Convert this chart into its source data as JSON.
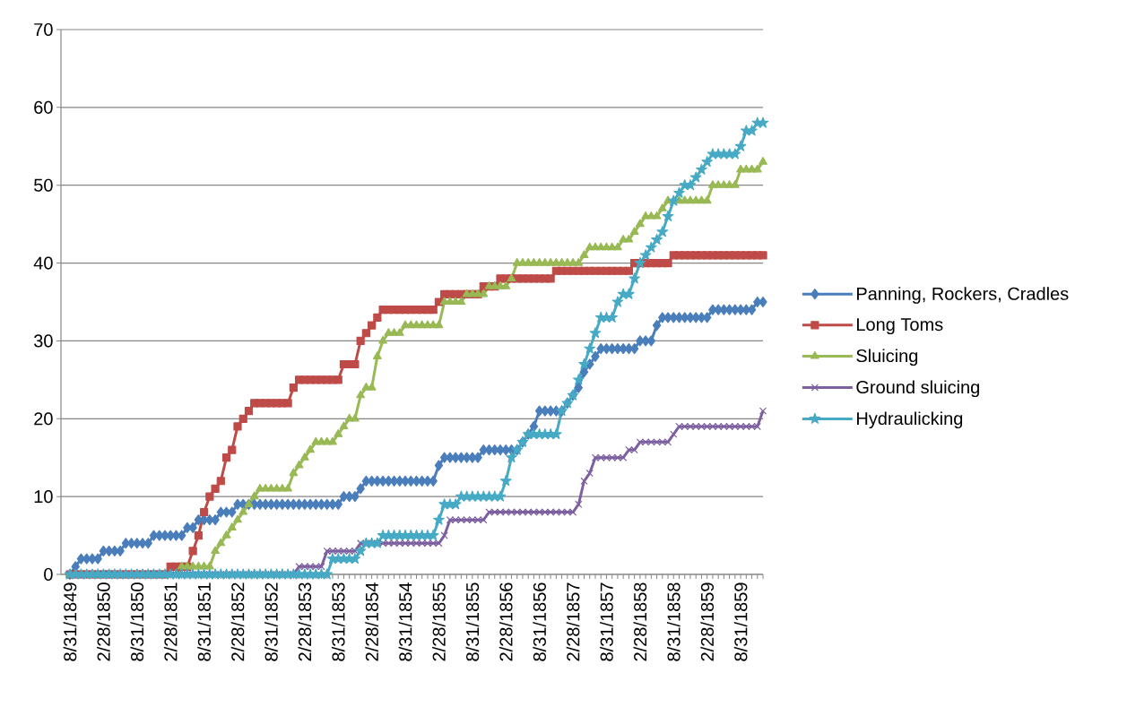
{
  "chart_data": {
    "type": "line",
    "categories": [
      "8/31/1849",
      null,
      null,
      null,
      null,
      null,
      "2/28/1850",
      null,
      null,
      null,
      null,
      null,
      "8/31/1850",
      null,
      null,
      null,
      null,
      null,
      "2/28/1851",
      null,
      null,
      null,
      null,
      null,
      "8/31/1851",
      null,
      null,
      null,
      null,
      null,
      "2/28/1852",
      null,
      null,
      null,
      null,
      null,
      "8/31/1852",
      null,
      null,
      null,
      null,
      null,
      "2/28/1853",
      null,
      null,
      null,
      null,
      null,
      "8/31/1853",
      null,
      null,
      null,
      null,
      null,
      "2/28/1854",
      null,
      null,
      null,
      null,
      null,
      "8/31/1854",
      null,
      null,
      null,
      null,
      null,
      "2/28/1855",
      null,
      null,
      null,
      null,
      null,
      "8/31/1855",
      null,
      null,
      null,
      null,
      null,
      "2/28/1856",
      null,
      null,
      null,
      null,
      null,
      "8/31/1856",
      null,
      null,
      null,
      null,
      null,
      "2/28/1857",
      null,
      null,
      null,
      null,
      null,
      "8/31/1857",
      null,
      null,
      null,
      null,
      null,
      "2/28/1858",
      null,
      null,
      null,
      null,
      null,
      "8/31/1858",
      null,
      null,
      null,
      null,
      null,
      "2/28/1859",
      null,
      null,
      null,
      null,
      null,
      "8/31/1859",
      null,
      null,
      null,
      null
    ],
    "series": [
      {
        "name": "Panning, Rockers, Cradles",
        "color": "#4a7ebb",
        "marker": "diamond",
        "values": [
          0,
          1,
          2,
          2,
          2,
          2,
          3,
          3,
          3,
          3,
          4,
          4,
          4,
          4,
          4,
          5,
          5,
          5,
          5,
          5,
          5,
          6,
          6,
          7,
          7,
          7,
          7,
          8,
          8,
          8,
          9,
          9,
          9,
          9,
          9,
          9,
          9,
          9,
          9,
          9,
          9,
          9,
          9,
          9,
          9,
          9,
          9,
          9,
          9,
          10,
          10,
          10,
          11,
          12,
          12,
          12,
          12,
          12,
          12,
          12,
          12,
          12,
          12,
          12,
          12,
          12,
          14,
          15,
          15,
          15,
          15,
          15,
          15,
          15,
          16,
          16,
          16,
          16,
          16,
          16,
          16,
          17,
          18,
          19,
          21,
          21,
          21,
          21,
          21,
          22,
          23,
          24,
          26,
          27,
          28,
          29,
          29,
          29,
          29,
          29,
          29,
          29,
          30,
          30,
          30,
          32,
          33,
          33,
          33,
          33,
          33,
          33,
          33,
          33,
          33,
          34,
          34,
          34,
          34,
          34,
          34,
          34,
          34,
          35,
          35
        ]
      },
      {
        "name": "Long Toms",
        "color": "#be4b48",
        "marker": "square",
        "values": [
          0,
          0,
          0,
          0,
          0,
          0,
          0,
          0,
          0,
          0,
          0,
          0,
          0,
          0,
          0,
          0,
          0,
          0,
          1,
          1,
          1,
          1,
          3,
          5,
          8,
          10,
          11,
          12,
          15,
          16,
          19,
          20,
          21,
          22,
          22,
          22,
          22,
          22,
          22,
          22,
          24,
          25,
          25,
          25,
          25,
          25,
          25,
          25,
          25,
          27,
          27,
          27,
          30,
          31,
          32,
          33,
          34,
          34,
          34,
          34,
          34,
          34,
          34,
          34,
          34,
          34,
          35,
          36,
          36,
          36,
          36,
          36,
          36,
          36,
          37,
          37,
          37,
          38,
          38,
          38,
          38,
          38,
          38,
          38,
          38,
          38,
          38,
          39,
          39,
          39,
          39,
          39,
          39,
          39,
          39,
          39,
          39,
          39,
          39,
          39,
          39,
          40,
          40,
          40,
          40,
          40,
          40,
          40,
          41,
          41,
          41,
          41,
          41,
          41,
          41,
          41,
          41,
          41,
          41,
          41,
          41,
          41,
          41,
          41,
          41
        ]
      },
      {
        "name": "Sluicing",
        "color": "#98b954",
        "marker": "triangle",
        "values": [
          0,
          0,
          0,
          0,
          0,
          0,
          0,
          0,
          0,
          0,
          0,
          0,
          0,
          0,
          0,
          0,
          0,
          0,
          0,
          0,
          1,
          1,
          1,
          1,
          1,
          1,
          3,
          4,
          5,
          6,
          7,
          8,
          9,
          10,
          11,
          11,
          11,
          11,
          11,
          11,
          13,
          14,
          15,
          16,
          17,
          17,
          17,
          17,
          18,
          19,
          20,
          20,
          23,
          24,
          24,
          28,
          30,
          31,
          31,
          31,
          32,
          32,
          32,
          32,
          32,
          32,
          32,
          35,
          35,
          35,
          35,
          36,
          36,
          36,
          36,
          37,
          37,
          37,
          37,
          38,
          40,
          40,
          40,
          40,
          40,
          40,
          40,
          40,
          40,
          40,
          40,
          40,
          41,
          42,
          42,
          42,
          42,
          42,
          42,
          43,
          43,
          44,
          45,
          46,
          46,
          46,
          47,
          48,
          48,
          48,
          48,
          48,
          48,
          48,
          48,
          50,
          50,
          50,
          50,
          50,
          52,
          52,
          52,
          52,
          53
        ]
      },
      {
        "name": "Ground sluicing",
        "color": "#7d60a0",
        "marker": "cross",
        "values": [
          0,
          0,
          0,
          0,
          0,
          0,
          0,
          0,
          0,
          0,
          0,
          0,
          0,
          0,
          0,
          0,
          0,
          0,
          0,
          0,
          0,
          0,
          0,
          0,
          0,
          0,
          0,
          0,
          0,
          0,
          0,
          0,
          0,
          0,
          0,
          0,
          0,
          0,
          0,
          0,
          0,
          1,
          1,
          1,
          1,
          1,
          3,
          3,
          3,
          3,
          3,
          3,
          4,
          4,
          4,
          4,
          4,
          4,
          4,
          4,
          4,
          4,
          4,
          4,
          4,
          4,
          4,
          5,
          7,
          7,
          7,
          7,
          7,
          7,
          7,
          8,
          8,
          8,
          8,
          8,
          8,
          8,
          8,
          8,
          8,
          8,
          8,
          8,
          8,
          8,
          8,
          9,
          12,
          13,
          15,
          15,
          15,
          15,
          15,
          15,
          16,
          16,
          17,
          17,
          17,
          17,
          17,
          17,
          18,
          19,
          19,
          19,
          19,
          19,
          19,
          19,
          19,
          19,
          19,
          19,
          19,
          19,
          19,
          19,
          21
        ]
      },
      {
        "name": "Hydraulicking",
        "color": "#46aac5",
        "marker": "star",
        "values": [
          0,
          0,
          0,
          0,
          0,
          0,
          0,
          0,
          0,
          0,
          0,
          0,
          0,
          0,
          0,
          0,
          0,
          0,
          0,
          0,
          0,
          0,
          0,
          0,
          0,
          0,
          0,
          0,
          0,
          0,
          0,
          0,
          0,
          0,
          0,
          0,
          0,
          0,
          0,
          0,
          0,
          0,
          0,
          0,
          0,
          0,
          0,
          2,
          2,
          2,
          2,
          2,
          3,
          4,
          4,
          4,
          5,
          5,
          5,
          5,
          5,
          5,
          5,
          5,
          5,
          5,
          7,
          9,
          9,
          9,
          10,
          10,
          10,
          10,
          10,
          10,
          10,
          10,
          12,
          15,
          16,
          17,
          18,
          18,
          18,
          18,
          18,
          18,
          21,
          22,
          23,
          25,
          27,
          29,
          31,
          33,
          33,
          33,
          35,
          36,
          36,
          38,
          40,
          41,
          42,
          43,
          44,
          46,
          48,
          49,
          50,
          50,
          51,
          52,
          53,
          54,
          54,
          54,
          54,
          54,
          55,
          57,
          57,
          58,
          58
        ]
      }
    ],
    "ylim": [
      0,
      70
    ],
    "yticks": [
      0,
      10,
      20,
      30,
      40,
      50,
      60,
      70
    ],
    "grid": "y",
    "legend": "right",
    "line_style": "solid"
  }
}
